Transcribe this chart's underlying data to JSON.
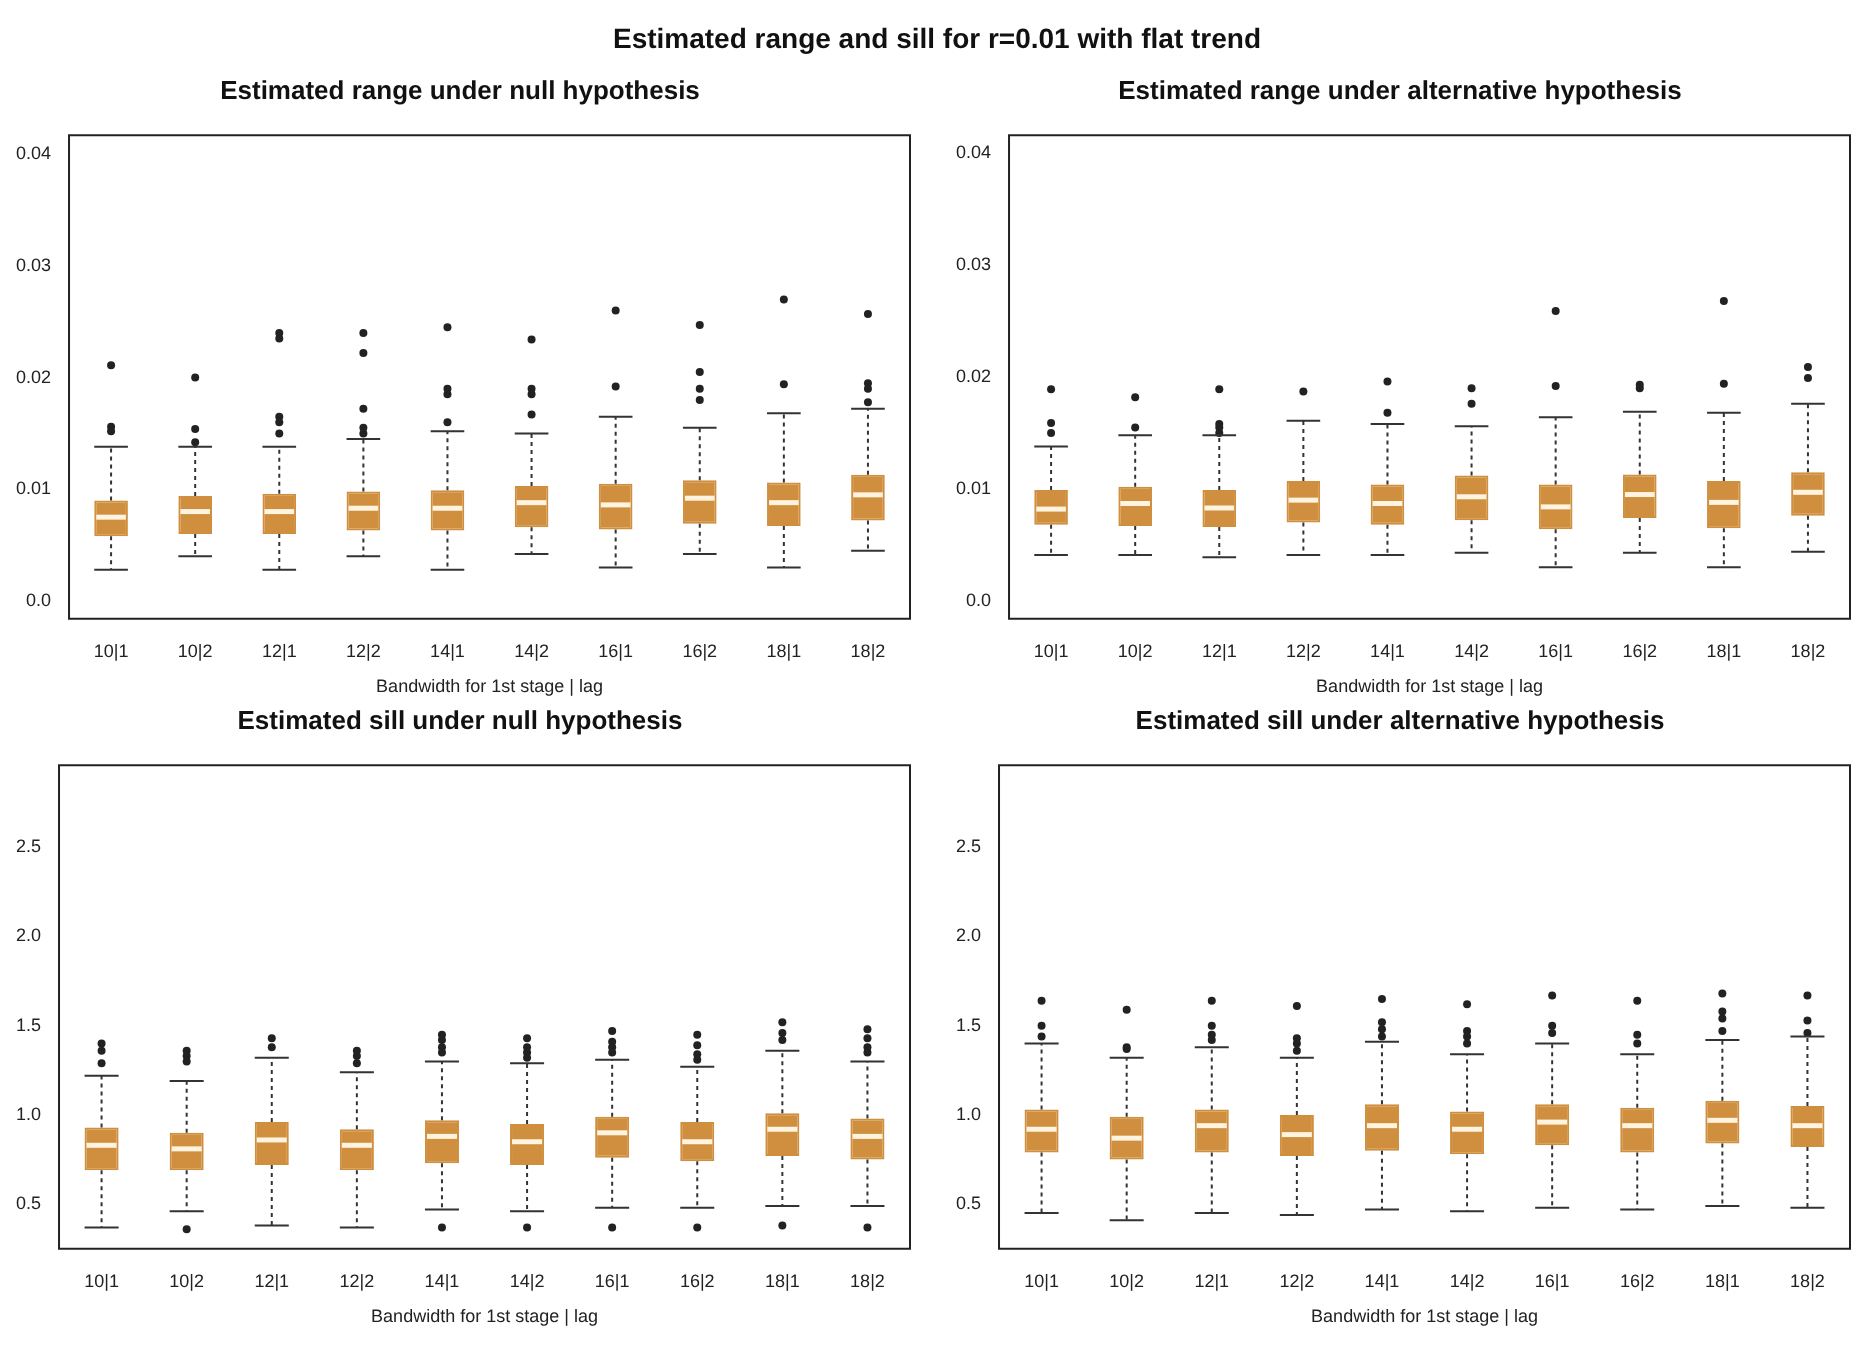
{
  "chart_data": [
    {
      "type": "box",
      "annotations": [
        "Estimated range and sill for r=0.01 with flat trend"
      ],
      "title": "Estimated range under null hypothesis",
      "xlabel": "Bandwidth for 1st stage | lag",
      "categories": [
        "10|1",
        "10|2",
        "12|1",
        "12|2",
        "14|1",
        "14|2",
        "16|1",
        "16|2",
        "18|1",
        "18|2"
      ],
      "ylim": [
        -0.0016,
        0.0417
      ],
      "yticks": [
        {
          "value": 0,
          "label": "0.0"
        },
        0.01,
        0.02,
        0.03,
        0.04
      ],
      "grid": false,
      "legend": false,
      "series": [
        {
          "color": "#cf8f3e",
          "boxes": [
            {
              "low": 0.0028,
              "q1": 0.0058,
              "median": 0.0075,
              "q3": 0.009,
              "high": 0.0138,
              "outliers": [
                0.0152,
                0.0156,
                0.0211
              ]
            },
            {
              "low": 0.004,
              "q1": 0.006,
              "median": 0.008,
              "q3": 0.0094,
              "high": 0.0138,
              "outliers": [
                0.0142,
                0.0154,
                0.02
              ]
            },
            {
              "low": 0.0028,
              "q1": 0.006,
              "median": 0.008,
              "q3": 0.0096,
              "high": 0.0138,
              "outliers": [
                0.015,
                0.016,
                0.0165,
                0.0235,
                0.024
              ]
            },
            {
              "low": 0.004,
              "q1": 0.0063,
              "median": 0.0083,
              "q3": 0.0098,
              "high": 0.0145,
              "outliers": [
                0.015,
                0.0155,
                0.0172,
                0.0222,
                0.024
              ]
            },
            {
              "low": 0.0028,
              "q1": 0.0063,
              "median": 0.0083,
              "q3": 0.0099,
              "high": 0.0152,
              "outliers": [
                0.016,
                0.0185,
                0.019,
                0.0245
              ]
            },
            {
              "low": 0.0042,
              "q1": 0.0066,
              "median": 0.0088,
              "q3": 0.0103,
              "high": 0.015,
              "outliers": [
                0.0167,
                0.0185,
                0.019,
                0.0234
              ]
            },
            {
              "low": 0.003,
              "q1": 0.0064,
              "median": 0.0086,
              "q3": 0.0105,
              "high": 0.0165,
              "outliers": [
                0.0192,
                0.026
              ]
            },
            {
              "low": 0.0042,
              "q1": 0.0069,
              "median": 0.0092,
              "q3": 0.0108,
              "high": 0.0155,
              "outliers": [
                0.018,
                0.019,
                0.0205,
                0.0247
              ]
            },
            {
              "low": 0.003,
              "q1": 0.0067,
              "median": 0.0088,
              "q3": 0.0106,
              "high": 0.0168,
              "outliers": [
                0.0194,
                0.027
              ]
            },
            {
              "low": 0.0045,
              "q1": 0.0072,
              "median": 0.0095,
              "q3": 0.0113,
              "high": 0.0172,
              "outliers": [
                0.0178,
                0.019,
                0.0195,
                0.0257
              ]
            }
          ]
        }
      ]
    },
    {
      "type": "box",
      "title": "Estimated range under alternative hypothesis",
      "xlabel": "Bandwidth for 1st stage | lag",
      "categories": [
        "10|1",
        "10|2",
        "12|1",
        "12|2",
        "14|1",
        "14|2",
        "16|1",
        "16|2",
        "18|1",
        "18|2"
      ],
      "ylim": [
        -0.0016,
        0.0416
      ],
      "yticks": [
        {
          "value": 0,
          "label": "0.0"
        },
        0.01,
        0.02,
        0.03,
        0.04
      ],
      "grid": false,
      "legend": false,
      "series": [
        {
          "color": "#cf8f3e",
          "boxes": [
            {
              "low": 0.0041,
              "q1": 0.0068,
              "median": 0.0082,
              "q3": 0.0099,
              "high": 0.0138,
              "outliers": [
                0.015,
                0.0159,
                0.0189
              ]
            },
            {
              "low": 0.0041,
              "q1": 0.0067,
              "median": 0.0087,
              "q3": 0.0102,
              "high": 0.0148,
              "outliers": [
                0.0155,
                0.0182
              ]
            },
            {
              "low": 0.0039,
              "q1": 0.0066,
              "median": 0.0083,
              "q3": 0.0099,
              "high": 0.0148,
              "outliers": [
                0.015,
                0.0155,
                0.0158,
                0.0189
              ]
            },
            {
              "low": 0.0041,
              "q1": 0.007,
              "median": 0.009,
              "q3": 0.0107,
              "high": 0.0161,
              "outliers": [
                0.0187
              ]
            },
            {
              "low": 0.0041,
              "q1": 0.0068,
              "median": 0.0087,
              "q3": 0.0104,
              "high": 0.0158,
              "outliers": [
                0.0168,
                0.0196
              ]
            },
            {
              "low": 0.0043,
              "q1": 0.0072,
              "median": 0.0093,
              "q3": 0.0112,
              "high": 0.0156,
              "outliers": [
                0.0176,
                0.019
              ]
            },
            {
              "low": 0.003,
              "q1": 0.0064,
              "median": 0.0084,
              "q3": 0.0104,
              "high": 0.0164,
              "outliers": [
                0.0192,
                0.0259
              ]
            },
            {
              "low": 0.0043,
              "q1": 0.0074,
              "median": 0.0095,
              "q3": 0.0113,
              "high": 0.0169,
              "outliers": [
                0.019,
                0.0193
              ]
            },
            {
              "low": 0.003,
              "q1": 0.0065,
              "median": 0.0088,
              "q3": 0.0107,
              "high": 0.0168,
              "outliers": [
                0.0194,
                0.0268
              ]
            },
            {
              "low": 0.0044,
              "q1": 0.0076,
              "median": 0.0097,
              "q3": 0.0115,
              "high": 0.0176,
              "outliers": [
                0.0199,
                0.0209
              ]
            }
          ]
        }
      ]
    },
    {
      "type": "box",
      "title": "Estimated sill under null hypothesis",
      "xlabel": "Bandwidth for 1st stage | lag",
      "categories": [
        "10|1",
        "10|2",
        "12|1",
        "12|2",
        "14|1",
        "14|2",
        "16|1",
        "16|2",
        "18|1",
        "18|2"
      ],
      "ylim": [
        0.25,
        2.96
      ],
      "yticks": [
        0.5,
        {
          "value": 1,
          "label": "1.0"
        },
        1.5,
        {
          "value": 2,
          "label": "2.0"
        },
        2.5
      ],
      "grid": false,
      "legend": false,
      "series": [
        {
          "color": "#cf8f3e",
          "boxes": [
            {
              "low": 0.37,
              "q1": 0.69,
              "median": 0.83,
              "q3": 0.93,
              "high": 1.22,
              "outliers": [
                1.29,
                1.36,
                1.4
              ]
            },
            {
              "low": 0.46,
              "q1": 0.69,
              "median": 0.81,
              "q3": 0.9,
              "high": 1.19,
              "outliers": [
                0.36,
                1.3,
                1.33,
                1.36
              ]
            },
            {
              "low": 0.38,
              "q1": 0.72,
              "median": 0.86,
              "q3": 0.96,
              "high": 1.32,
              "outliers": [
                1.38,
                1.43
              ]
            },
            {
              "low": 0.37,
              "q1": 0.69,
              "median": 0.83,
              "q3": 0.92,
              "high": 1.24,
              "outliers": [
                1.29,
                1.33,
                1.36
              ]
            },
            {
              "low": 0.47,
              "q1": 0.73,
              "median": 0.88,
              "q3": 0.97,
              "high": 1.3,
              "outliers": [
                0.37,
                1.35,
                1.38,
                1.42,
                1.45
              ]
            },
            {
              "low": 0.46,
              "q1": 0.72,
              "median": 0.85,
              "q3": 0.95,
              "high": 1.29,
              "outliers": [
                0.37,
                1.32,
                1.35,
                1.38,
                1.43
              ]
            },
            {
              "low": 0.48,
              "q1": 0.76,
              "median": 0.9,
              "q3": 0.99,
              "high": 1.31,
              "outliers": [
                0.37,
                1.35,
                1.38,
                1.41,
                1.47
              ]
            },
            {
              "low": 0.48,
              "q1": 0.74,
              "median": 0.85,
              "q3": 0.96,
              "high": 1.27,
              "outliers": [
                0.37,
                1.31,
                1.34,
                1.39,
                1.45
              ]
            },
            {
              "low": 0.49,
              "q1": 0.77,
              "median": 0.92,
              "q3": 1.01,
              "high": 1.36,
              "outliers": [
                0.38,
                1.42,
                1.46,
                1.52
              ]
            },
            {
              "low": 0.49,
              "q1": 0.75,
              "median": 0.88,
              "q3": 0.98,
              "high": 1.3,
              "outliers": [
                0.37,
                1.35,
                1.38,
                1.43,
                1.48
              ]
            }
          ]
        }
      ]
    },
    {
      "type": "box",
      "title": "Estimated sill under alternative hypothesis",
      "xlabel": "Bandwidth for 1st stage | lag",
      "categories": [
        "10|1",
        "10|2",
        "12|1",
        "12|2",
        "14|1",
        "14|2",
        "16|1",
        "16|2",
        "18|1",
        "18|2"
      ],
      "ylim": [
        0.25,
        2.96
      ],
      "yticks": [
        0.5,
        {
          "value": 1,
          "label": "1.0"
        },
        1.5,
        {
          "value": 2,
          "label": "2.0"
        },
        2.5
      ],
      "grid": false,
      "legend": false,
      "series": [
        {
          "color": "#cf8f3e",
          "boxes": [
            {
              "low": 0.45,
              "q1": 0.79,
              "median": 0.92,
              "q3": 1.03,
              "high": 1.4,
              "outliers": [
                1.44,
                1.5,
                1.64
              ]
            },
            {
              "low": 0.41,
              "q1": 0.75,
              "median": 0.87,
              "q3": 0.99,
              "high": 1.32,
              "outliers": [
                1.37,
                1.38,
                1.59
              ]
            },
            {
              "low": 0.45,
              "q1": 0.79,
              "median": 0.94,
              "q3": 1.03,
              "high": 1.38,
              "outliers": [
                1.42,
                1.45,
                1.5,
                1.64
              ]
            },
            {
              "low": 0.44,
              "q1": 0.77,
              "median": 0.89,
              "q3": 1.0,
              "high": 1.32,
              "outliers": [
                1.36,
                1.4,
                1.43,
                1.61
              ]
            },
            {
              "low": 0.47,
              "q1": 0.8,
              "median": 0.94,
              "q3": 1.06,
              "high": 1.41,
              "outliers": [
                1.44,
                1.48,
                1.52,
                1.65
              ]
            },
            {
              "low": 0.46,
              "q1": 0.78,
              "median": 0.92,
              "q3": 1.02,
              "high": 1.34,
              "outliers": [
                1.4,
                1.44,
                1.47,
                1.62
              ]
            },
            {
              "low": 0.48,
              "q1": 0.83,
              "median": 0.96,
              "q3": 1.06,
              "high": 1.4,
              "outliers": [
                1.46,
                1.5,
                1.67
              ]
            },
            {
              "low": 0.47,
              "q1": 0.79,
              "median": 0.94,
              "q3": 1.04,
              "high": 1.34,
              "outliers": [
                1.4,
                1.45,
                1.64
              ]
            },
            {
              "low": 0.49,
              "q1": 0.84,
              "median": 0.97,
              "q3": 1.08,
              "high": 1.42,
              "outliers": [
                1.47,
                1.54,
                1.58,
                1.68
              ]
            },
            {
              "low": 0.48,
              "q1": 0.82,
              "median": 0.94,
              "q3": 1.05,
              "high": 1.44,
              "outliers": [
                1.46,
                1.53,
                1.67
              ]
            }
          ]
        }
      ]
    }
  ]
}
